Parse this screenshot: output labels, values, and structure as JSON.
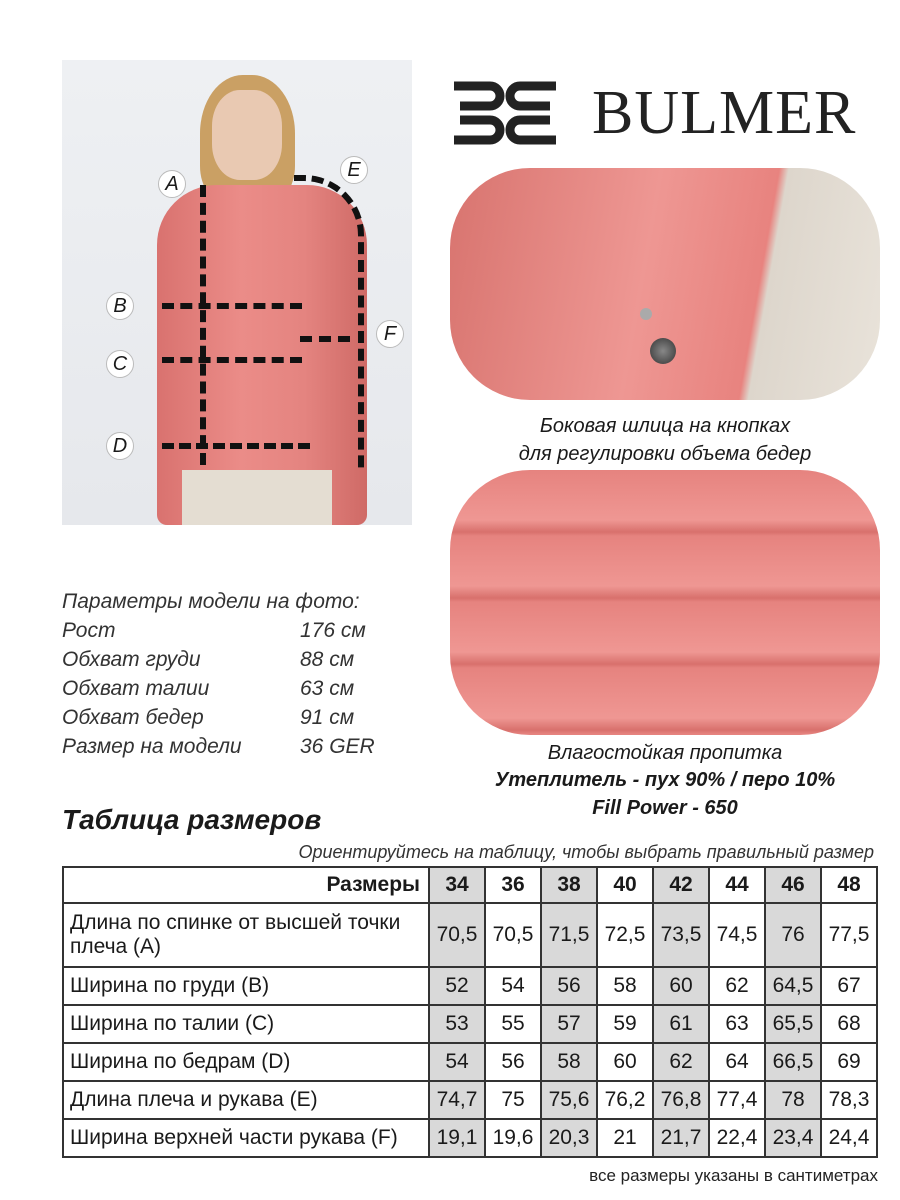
{
  "brand": {
    "name": "BULMER"
  },
  "model_photo": {
    "labels": [
      "A",
      "B",
      "C",
      "D",
      "E",
      "F"
    ]
  },
  "detail1": {
    "caption_line1": "Боковая шлица на кнопках",
    "caption_line2": "для регулировки объема бедер"
  },
  "detail2": {
    "caption": "Влагостойкая пропитка",
    "fill": "Утеплитель - пух 90% / перо 10%",
    "fill_power": "Fill Power - 650"
  },
  "model_params": {
    "title": "Параметры модели на фото:",
    "rows": [
      {
        "label": "Рост",
        "value": "176 см"
      },
      {
        "label": "Обхват груди",
        "value": "88 см"
      },
      {
        "label": "Обхват талии",
        "value": "63 см"
      },
      {
        "label": "Обхват бедер",
        "value": "91 см"
      },
      {
        "label": "Размер на модели",
        "value": "36 GER"
      }
    ]
  },
  "size_table": {
    "title": "Таблица размеров",
    "subtitle": "Ориентируйтесь на таблицу, чтобы выбрать правильный размер",
    "header_label": "Размеры",
    "sizes": [
      "34",
      "36",
      "38",
      "40",
      "42",
      "44",
      "46",
      "48"
    ],
    "rows": [
      {
        "label": "Длина по спинке от высшей точки плеча (A)",
        "values": [
          "70,5",
          "70,5",
          "71,5",
          "72,5",
          "73,5",
          "74,5",
          "76",
          "77,5"
        ]
      },
      {
        "label": "Ширина по груди (B)",
        "values": [
          "52",
          "54",
          "56",
          "58",
          "60",
          "62",
          "64,5",
          "67"
        ]
      },
      {
        "label": "Ширина по талии (C)",
        "values": [
          "53",
          "55",
          "57",
          "59",
          "61",
          "63",
          "65,5",
          "68"
        ]
      },
      {
        "label": "Ширина по бедрам (D)",
        "values": [
          "54",
          "56",
          "58",
          "60",
          "62",
          "64",
          "66,5",
          "69"
        ]
      },
      {
        "label": "Длина плеча и рукава (E)",
        "values": [
          "74,7",
          "75",
          "75,6",
          "76,2",
          "76,8",
          "77,4",
          "78",
          "78,3"
        ]
      },
      {
        "label": "Ширина верхней части рукава (F)",
        "values": [
          "19,1",
          "19,6",
          "20,3",
          "21",
          "21,7",
          "22,4",
          "23,4",
          "24,4"
        ]
      }
    ],
    "footnote": "все размеры указаны в сантиметрах"
  },
  "colors": {
    "jacket": "#e8837f",
    "shade": "#d9d9d9"
  }
}
